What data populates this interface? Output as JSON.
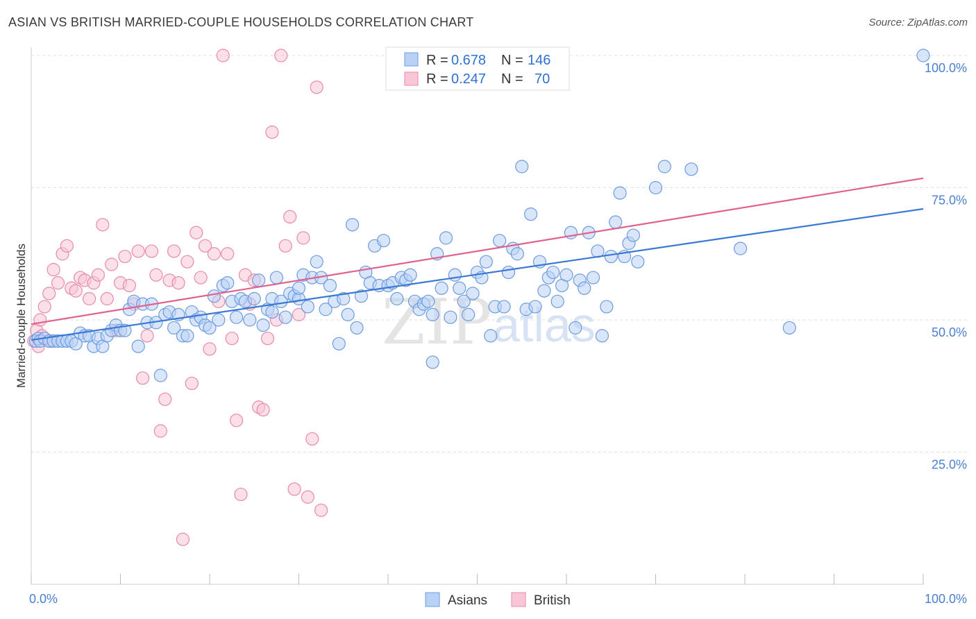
{
  "header": {
    "title": "ASIAN VS BRITISH MARRIED-COUPLE HOUSEHOLDS CORRELATION CHART",
    "source": "Source: ZipAtlas.com"
  },
  "watermark": {
    "zip": "ZIP",
    "atlas": "atlas"
  },
  "legend_top": {
    "rows": [
      {
        "r_label": "R =",
        "r_value": "0.678",
        "n_label": "N =",
        "n_value": "146",
        "color": "#6b9be0",
        "fill": "#b9d1f5"
      },
      {
        "r_label": "R =",
        "r_value": "0.247",
        "n_label": "N =",
        "n_value": "70",
        "color": "#e88aaa",
        "fill": "#f8c6d6"
      }
    ]
  },
  "legend_bottom": [
    {
      "label": "Asians",
      "fill": "#b9d1f5",
      "stroke": "#6b9be0"
    },
    {
      "label": "British",
      "fill": "#f8c6d6",
      "stroke": "#e88aaa"
    }
  ],
  "chart_data": {
    "type": "scatter",
    "title": "ASIAN VS BRITISH MARRIED-COUPLE HOUSEHOLDS CORRELATION CHART",
    "xlabel": "",
    "ylabel": "Married-couple Households",
    "xlim": [
      0,
      100
    ],
    "ylim": [
      0,
      100
    ],
    "x_tick_labels": [
      "0.0%",
      "100.0%"
    ],
    "y_ticks": [
      {
        "value": 25,
        "label": "25.0%"
      },
      {
        "value": 50,
        "label": "50.0%"
      },
      {
        "value": 75,
        "label": "75.0%"
      },
      {
        "value": 100,
        "label": "100.0%"
      }
    ],
    "grid": true,
    "legend_position": "top-center",
    "series": [
      {
        "name": "Asians",
        "color": "#3a78d4",
        "fill": "#b9d1f5",
        "stroke": "#6b9be0",
        "trend": {
          "x": [
            0,
            100
          ],
          "y": [
            46.2,
            71.0
          ]
        },
        "points": [
          [
            0.5,
            46
          ],
          [
            0.8,
            46.5
          ],
          [
            1,
            46
          ],
          [
            1.5,
            46.5
          ],
          [
            2,
            46
          ],
          [
            2.5,
            46
          ],
          [
            3,
            46
          ],
          [
            3.5,
            46
          ],
          [
            4,
            46
          ],
          [
            4.5,
            46
          ],
          [
            5,
            45.5
          ],
          [
            5.5,
            47.5
          ],
          [
            6,
            47
          ],
          [
            6.5,
            47
          ],
          [
            7,
            45
          ],
          [
            7.5,
            46.5
          ],
          [
            8,
            45
          ],
          [
            8.5,
            47
          ],
          [
            9,
            48
          ],
          [
            9.5,
            49
          ],
          [
            10,
            48
          ],
          [
            10.5,
            48
          ],
          [
            11,
            52
          ],
          [
            11.5,
            53.5
          ],
          [
            12,
            45
          ],
          [
            12.5,
            53
          ],
          [
            13,
            49.5
          ],
          [
            13.5,
            53
          ],
          [
            14,
            49.5
          ],
          [
            14.5,
            39.5
          ],
          [
            15,
            51
          ],
          [
            15.5,
            51.5
          ],
          [
            16,
            48.5
          ],
          [
            16.5,
            51
          ],
          [
            17,
            47
          ],
          [
            17.5,
            47
          ],
          [
            18,
            51.5
          ],
          [
            18.5,
            50
          ],
          [
            19,
            50.5
          ],
          [
            19.5,
            49
          ],
          [
            20,
            48.5
          ],
          [
            20.5,
            54.5
          ],
          [
            21,
            50
          ],
          [
            21.5,
            56.5
          ],
          [
            22,
            57
          ],
          [
            22.5,
            53.5
          ],
          [
            23,
            50.5
          ],
          [
            23.5,
            54
          ],
          [
            24,
            53.5
          ],
          [
            24.5,
            50
          ],
          [
            25,
            54
          ],
          [
            25.5,
            57.5
          ],
          [
            26,
            49
          ],
          [
            26.5,
            52
          ],
          [
            27,
            54
          ],
          [
            27.5,
            58
          ],
          [
            28,
            53.5
          ],
          [
            28.5,
            50.5
          ],
          [
            29,
            55
          ],
          [
            29.5,
            54.5
          ],
          [
            30,
            54
          ],
          [
            30.5,
            58.5
          ],
          [
            31,
            52.5
          ],
          [
            31.5,
            58
          ],
          [
            32,
            61
          ],
          [
            32.5,
            58
          ],
          [
            33,
            52
          ],
          [
            33.5,
            56.5
          ],
          [
            34,
            53.5
          ],
          [
            34.5,
            45.5
          ],
          [
            35,
            54
          ],
          [
            35.5,
            51
          ],
          [
            36,
            68
          ],
          [
            36.5,
            48.5
          ],
          [
            37,
            54.5
          ],
          [
            37.5,
            59
          ],
          [
            38,
            57
          ],
          [
            38.5,
            64
          ],
          [
            39,
            56.5
          ],
          [
            39.5,
            65
          ],
          [
            40,
            56.5
          ],
          [
            40.5,
            57
          ],
          [
            41,
            54
          ],
          [
            41.5,
            58
          ],
          [
            42,
            57.5
          ],
          [
            42.5,
            58.5
          ],
          [
            43,
            53.5
          ],
          [
            43.5,
            52
          ],
          [
            44,
            53
          ],
          [
            44.5,
            53.5
          ],
          [
            45,
            42
          ],
          [
            45.5,
            62.5
          ],
          [
            46,
            56
          ],
          [
            46.5,
            65.5
          ],
          [
            47,
            50.5
          ],
          [
            47.5,
            58.5
          ],
          [
            48,
            56
          ],
          [
            48.5,
            53.5
          ],
          [
            49,
            51
          ],
          [
            49.5,
            55
          ],
          [
            50,
            59
          ],
          [
            50.5,
            58
          ],
          [
            51,
            61
          ],
          [
            51.5,
            47
          ],
          [
            52,
            52.5
          ],
          [
            52.5,
            65
          ],
          [
            53,
            52.5
          ],
          [
            53.5,
            59
          ],
          [
            54,
            63.5
          ],
          [
            54.5,
            62.5
          ],
          [
            55,
            79
          ],
          [
            55.5,
            52
          ],
          [
            56,
            70
          ],
          [
            56.5,
            52.5
          ],
          [
            57,
            61
          ],
          [
            57.5,
            55.5
          ],
          [
            58,
            58
          ],
          [
            58.5,
            59
          ],
          [
            59,
            53.5
          ],
          [
            59.5,
            56.5
          ],
          [
            60,
            58.5
          ],
          [
            60.5,
            66.5
          ],
          [
            61,
            48.5
          ],
          [
            61.5,
            57.5
          ],
          [
            62,
            56
          ],
          [
            62.5,
            66.5
          ],
          [
            63,
            58
          ],
          [
            63.5,
            63
          ],
          [
            64,
            47
          ],
          [
            64.5,
            52.5
          ],
          [
            65,
            62
          ],
          [
            65.5,
            68.5
          ],
          [
            66,
            74
          ],
          [
            66.5,
            62
          ],
          [
            67,
            64.5
          ],
          [
            67.5,
            66
          ],
          [
            68,
            61
          ],
          [
            70,
            75
          ],
          [
            71,
            79
          ],
          [
            74,
            78.5
          ],
          [
            79.5,
            63.5
          ],
          [
            85,
            48.5
          ],
          [
            100,
            100
          ],
          [
            45,
            51
          ],
          [
            30,
            56
          ],
          [
            27,
            51.5
          ]
        ]
      },
      {
        "name": "British",
        "color": "#e0608e",
        "fill": "#f8c6d6",
        "stroke": "#e88aaa",
        "trend": {
          "x": [
            0,
            100
          ],
          "y": [
            49.2,
            76.8
          ]
        },
        "points": [
          [
            0.3,
            46
          ],
          [
            0.6,
            48
          ],
          [
            1,
            50
          ],
          [
            1.5,
            52.5
          ],
          [
            2,
            55
          ],
          [
            2.5,
            59.5
          ],
          [
            3,
            57
          ],
          [
            3.5,
            62.5
          ],
          [
            4,
            64
          ],
          [
            4.5,
            56
          ],
          [
            5,
            55.5
          ],
          [
            5.5,
            58
          ],
          [
            6,
            57.5
          ],
          [
            6.5,
            54
          ],
          [
            7,
            57
          ],
          [
            7.5,
            58.5
          ],
          [
            8,
            68
          ],
          [
            8.5,
            54
          ],
          [
            9,
            60.5
          ],
          [
            9.5,
            48
          ],
          [
            10,
            57
          ],
          [
            10.5,
            62
          ],
          [
            11,
            56.5
          ],
          [
            11.5,
            53
          ],
          [
            12,
            63
          ],
          [
            12.5,
            39
          ],
          [
            13,
            47
          ],
          [
            13.5,
            63
          ],
          [
            14,
            58.5
          ],
          [
            14.5,
            29
          ],
          [
            15,
            35
          ],
          [
            15.5,
            57.5
          ],
          [
            16,
            63
          ],
          [
            16.5,
            57
          ],
          [
            17,
            8.5
          ],
          [
            17.5,
            61
          ],
          [
            18,
            38
          ],
          [
            18.5,
            66.5
          ],
          [
            19,
            58
          ],
          [
            19.5,
            64
          ],
          [
            20,
            44.5
          ],
          [
            20.5,
            62.5
          ],
          [
            21,
            53.5
          ],
          [
            21.5,
            100
          ],
          [
            22,
            62.5
          ],
          [
            22.5,
            46.5
          ],
          [
            23,
            31
          ],
          [
            23.5,
            17
          ],
          [
            24,
            58.5
          ],
          [
            24.5,
            53
          ],
          [
            25,
            57.5
          ],
          [
            25.5,
            33.5
          ],
          [
            26,
            33
          ],
          [
            26.5,
            46.5
          ],
          [
            27,
            85.5
          ],
          [
            27.5,
            50
          ],
          [
            28,
            100
          ],
          [
            28.5,
            64
          ],
          [
            29,
            69.5
          ],
          [
            29.5,
            18
          ],
          [
            30,
            51
          ],
          [
            30.5,
            65.5
          ],
          [
            31,
            16.5
          ],
          [
            31.5,
            27.5
          ],
          [
            32,
            94
          ],
          [
            32.5,
            14
          ],
          [
            52,
            100
          ],
          [
            1.2,
            47
          ],
          [
            2.2,
            46
          ],
          [
            0.8,
            45
          ]
        ]
      }
    ]
  }
}
